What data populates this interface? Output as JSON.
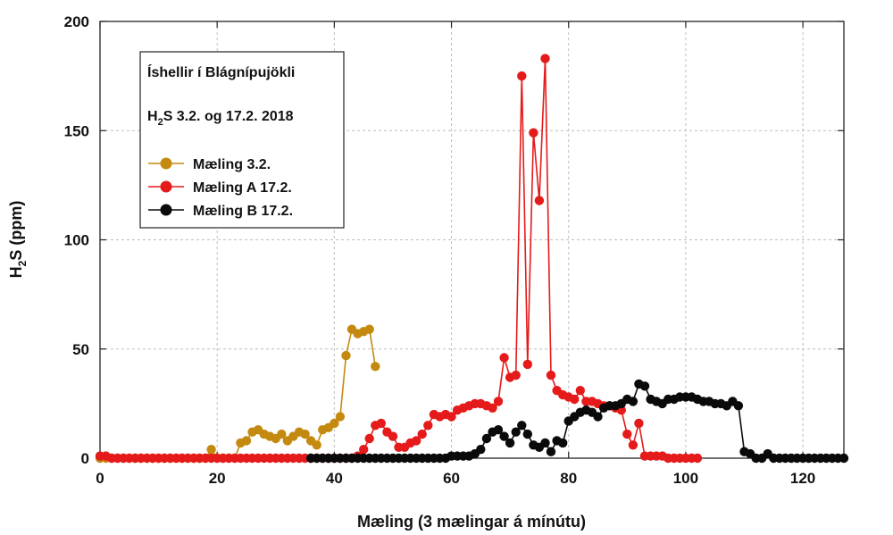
{
  "chart_data": {
    "type": "line",
    "title": "Íshellir í Blágnípujökli",
    "subtitle": {
      "prefix": "H",
      "sub": "2",
      "suffix": "S 3.2. og 17.2. 2018"
    },
    "xlabel": "Mæling (3 mælingar á mínútu)",
    "ylabel": {
      "prefix": "H",
      "sub": "2",
      "suffix": "S (ppm)"
    },
    "xlim": [
      0,
      127
    ],
    "ylim": [
      0,
      200
    ],
    "xticks": [
      0,
      20,
      40,
      60,
      80,
      100,
      120
    ],
    "yticks": [
      0,
      50,
      100,
      150,
      200
    ],
    "grid": true,
    "legend_position": "top-left",
    "series": [
      {
        "name": "Mæling 3.2.",
        "color": "#c48a10",
        "x": [
          0,
          1,
          2,
          3,
          4,
          5,
          6,
          7,
          8,
          9,
          10,
          11,
          12,
          13,
          14,
          15,
          16,
          17,
          18,
          19,
          20,
          21,
          22,
          23,
          24,
          25,
          26,
          27,
          28,
          29,
          30,
          31,
          32,
          33,
          34,
          35,
          36,
          37,
          38,
          39,
          40,
          41,
          42,
          43,
          44,
          45,
          46,
          47
        ],
        "values": [
          0,
          0,
          0,
          0,
          0,
          0,
          0,
          0,
          0,
          0,
          0,
          0,
          0,
          0,
          0,
          0,
          0,
          0,
          0,
          4,
          0,
          0,
          0,
          0,
          7,
          8,
          12,
          13,
          11,
          10,
          9,
          11,
          8,
          10,
          12,
          11,
          8,
          6,
          13,
          14,
          16,
          19,
          47,
          59,
          57,
          58,
          59,
          42
        ]
      },
      {
        "name": "Mæling A 17.2.",
        "color": "#e51a1a",
        "x": [
          0,
          1,
          2,
          3,
          4,
          5,
          6,
          7,
          8,
          9,
          10,
          11,
          12,
          13,
          14,
          15,
          16,
          17,
          18,
          19,
          20,
          21,
          22,
          23,
          24,
          25,
          26,
          27,
          28,
          29,
          30,
          31,
          32,
          33,
          34,
          35,
          36,
          37,
          38,
          39,
          40,
          41,
          42,
          43,
          44,
          45,
          46,
          47,
          48,
          49,
          50,
          51,
          52,
          53,
          54,
          55,
          56,
          57,
          58,
          59,
          60,
          61,
          62,
          63,
          64,
          65,
          66,
          67,
          68,
          69,
          70,
          71,
          72,
          73,
          74,
          75,
          76,
          77,
          78,
          79,
          80,
          81,
          82,
          83,
          84,
          85,
          86,
          87,
          88,
          89,
          90,
          91,
          92,
          93,
          94,
          95,
          96,
          97,
          98,
          99,
          100,
          101,
          102
        ],
        "values": [
          1,
          1,
          0,
          0,
          0,
          0,
          0,
          0,
          0,
          0,
          0,
          0,
          0,
          0,
          0,
          0,
          0,
          0,
          0,
          0,
          0,
          0,
          0,
          0,
          0,
          0,
          0,
          0,
          0,
          0,
          0,
          0,
          0,
          0,
          0,
          0,
          0,
          0,
          0,
          0,
          0,
          0,
          0,
          0,
          1,
          4,
          9,
          15,
          16,
          12,
          10,
          5,
          5,
          7,
          8,
          11,
          15,
          20,
          19,
          20,
          19,
          22,
          23,
          24,
          25,
          25,
          24,
          23,
          26,
          46,
          37,
          38,
          175,
          43,
          149,
          118,
          183,
          38,
          31,
          29,
          28,
          27,
          31,
          26,
          26,
          25,
          24,
          24,
          23,
          22,
          11,
          6,
          16,
          1,
          1,
          1,
          1,
          0,
          0,
          0,
          0,
          0,
          0
        ]
      },
      {
        "name": "Mæling B 17.2.",
        "color": "#0a0a0a",
        "x": [
          36,
          37,
          38,
          39,
          40,
          41,
          42,
          43,
          44,
          45,
          46,
          47,
          48,
          49,
          50,
          51,
          52,
          53,
          54,
          55,
          56,
          57,
          58,
          59,
          60,
          61,
          62,
          63,
          64,
          65,
          66,
          67,
          68,
          69,
          70,
          71,
          72,
          73,
          74,
          75,
          76,
          77,
          78,
          79,
          80,
          81,
          82,
          83,
          84,
          85,
          86,
          87,
          88,
          89,
          90,
          91,
          92,
          93,
          94,
          95,
          96,
          97,
          98,
          99,
          100,
          101,
          102,
          103,
          104,
          105,
          106,
          107,
          108,
          109,
          110,
          111,
          112,
          113,
          114,
          115,
          116,
          117,
          118,
          119,
          120,
          121,
          122,
          123,
          124,
          125,
          126,
          127
        ],
        "values": [
          0,
          0,
          0,
          0,
          0,
          0,
          0,
          0,
          0,
          0,
          0,
          0,
          0,
          0,
          0,
          0,
          0,
          0,
          0,
          0,
          0,
          0,
          0,
          0,
          1,
          1,
          1,
          1,
          2,
          4,
          9,
          12,
          13,
          10,
          7,
          12,
          15,
          11,
          6,
          5,
          7,
          3,
          8,
          7,
          17,
          19,
          21,
          22,
          21,
          19,
          23,
          24,
          24,
          25,
          27,
          26,
          34,
          33,
          27,
          26,
          25,
          27,
          27,
          28,
          28,
          28,
          27,
          26,
          26,
          25,
          25,
          24,
          26,
          24,
          3,
          2,
          0,
          0,
          2,
          0,
          0,
          0,
          0,
          0,
          0,
          0,
          0,
          0,
          0,
          0,
          0,
          0
        ]
      }
    ]
  }
}
